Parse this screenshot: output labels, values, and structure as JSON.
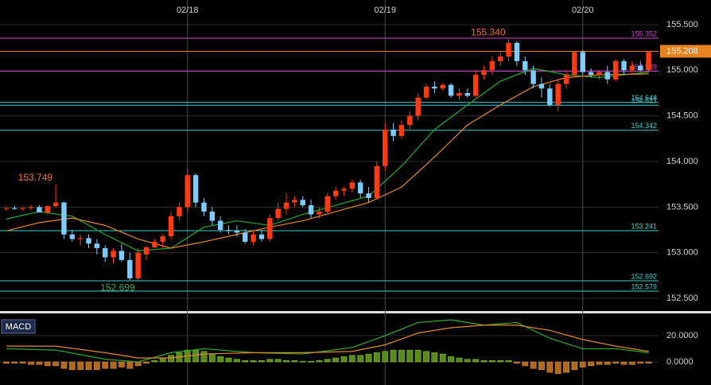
{
  "chart_data": [
    {
      "type": "candlestick",
      "categories": [
        null,
        null,
        null,
        null,
        null,
        null,
        null,
        null,
        null,
        null,
        null,
        null,
        null,
        null,
        null,
        null,
        null,
        null,
        null,
        null,
        null,
        null,
        "02/18",
        null,
        null,
        null,
        null,
        null,
        null,
        null,
        null,
        null,
        null,
        null,
        null,
        null,
        null,
        null,
        null,
        null,
        null,
        null,
        null,
        null,
        null,
        null,
        "02/19",
        null,
        null,
        null,
        null,
        null,
        null,
        null,
        null,
        null,
        null,
        null,
        null,
        null,
        null,
        null,
        null,
        null,
        null,
        null,
        null,
        null,
        null,
        null,
        "02/20",
        null,
        null,
        null,
        null,
        null,
        null,
        null,
        null
      ],
      "open": [
        153.48,
        153.49,
        153.48,
        153.49,
        153.5,
        153.44,
        153.51,
        153.55,
        153.2,
        153.15,
        153.16,
        153.1,
        153.05,
        152.95,
        153.02,
        152.92,
        152.72,
        152.98,
        153.06,
        153.12,
        153.18,
        153.4,
        153.5,
        153.85,
        153.55,
        153.45,
        153.35,
        153.25,
        153.24,
        153.22,
        153.12,
        153.2,
        153.15,
        153.38,
        153.48,
        153.55,
        153.58,
        153.52,
        153.42,
        153.45,
        153.62,
        153.68,
        153.7,
        153.77,
        153.65,
        153.6,
        153.95,
        154.35,
        154.28,
        154.4,
        154.5,
        154.7,
        154.82,
        154.8,
        154.84,
        154.72,
        154.75,
        154.72,
        154.95,
        155.0,
        155.1,
        155.15,
        155.3,
        155.1,
        155.0,
        154.85,
        154.8,
        154.62,
        154.85,
        154.95,
        155.2,
        154.98,
        154.95,
        154.98,
        154.9,
        155.1,
        155.0,
        155.05,
        155.0
      ],
      "high": [
        153.5,
        153.51,
        153.5,
        153.52,
        153.52,
        153.52,
        153.749,
        153.56,
        153.25,
        153.2,
        153.2,
        153.15,
        153.08,
        153.05,
        153.1,
        153.0,
        153.05,
        153.08,
        153.15,
        153.2,
        153.45,
        153.55,
        153.92,
        153.87,
        153.6,
        153.5,
        153.4,
        153.3,
        153.3,
        153.26,
        153.24,
        153.25,
        153.42,
        153.55,
        153.65,
        153.62,
        153.62,
        153.58,
        153.5,
        153.65,
        153.72,
        153.72,
        153.8,
        153.8,
        153.72,
        154.0,
        154.42,
        154.42,
        154.45,
        154.55,
        154.75,
        154.85,
        154.88,
        154.86,
        154.86,
        154.8,
        154.8,
        155.0,
        155.05,
        155.15,
        155.2,
        155.34,
        155.32,
        155.15,
        155.05,
        154.92,
        154.85,
        154.9,
        155.0,
        155.2,
        155.22,
        155.02,
        155.0,
        155.05,
        155.12,
        155.12,
        155.1,
        155.1,
        155.21
      ],
      "low": [
        153.46,
        153.47,
        153.46,
        153.47,
        153.45,
        153.42,
        153.5,
        153.15,
        153.12,
        153.08,
        153.05,
        152.98,
        152.9,
        152.88,
        152.9,
        152.7,
        152.699,
        152.92,
        153.05,
        153.05,
        153.15,
        153.35,
        153.45,
        153.5,
        153.4,
        153.3,
        153.22,
        153.2,
        153.18,
        153.1,
        153.08,
        153.12,
        153.12,
        153.35,
        153.42,
        153.5,
        153.5,
        153.38,
        153.38,
        153.42,
        153.58,
        153.62,
        153.66,
        153.6,
        153.55,
        153.58,
        153.9,
        154.22,
        154.25,
        154.35,
        154.45,
        154.68,
        154.75,
        154.78,
        154.7,
        154.68,
        154.7,
        154.7,
        154.9,
        154.95,
        155.05,
        155.1,
        155.05,
        154.95,
        154.8,
        154.7,
        154.6,
        154.55,
        154.8,
        154.92,
        154.95,
        154.92,
        154.9,
        154.85,
        154.88,
        154.95,
        154.95,
        154.98,
        154.98
      ],
      "close": [
        153.49,
        153.48,
        153.49,
        153.5,
        153.44,
        153.51,
        153.55,
        153.2,
        153.15,
        153.16,
        153.1,
        153.05,
        152.95,
        153.02,
        152.92,
        152.72,
        153.0,
        153.06,
        153.12,
        153.18,
        153.4,
        153.5,
        153.85,
        153.55,
        153.45,
        153.35,
        153.25,
        153.24,
        153.22,
        153.12,
        153.2,
        153.15,
        153.38,
        153.48,
        153.55,
        153.58,
        153.52,
        153.42,
        153.45,
        153.62,
        153.68,
        153.7,
        153.77,
        153.65,
        153.6,
        153.95,
        154.35,
        154.28,
        154.4,
        154.5,
        154.7,
        154.82,
        154.8,
        154.84,
        154.72,
        154.75,
        154.72,
        154.95,
        155.0,
        155.1,
        155.15,
        155.3,
        155.1,
        155.0,
        154.85,
        154.8,
        154.62,
        154.85,
        154.95,
        155.2,
        154.98,
        154.95,
        154.98,
        154.9,
        155.1,
        155.0,
        155.05,
        155.0,
        155.2
      ],
      "up_color": "#ff3a12",
      "down_color": "#7ecbff",
      "lines": [
        {
          "color": "#1fae2a",
          "x": [
            0,
            4,
            8,
            12,
            16,
            20,
            24,
            28,
            32,
            36,
            40,
            44,
            48,
            52,
            56,
            60,
            64,
            68,
            72,
            78
          ],
          "values": [
            153.37,
            153.45,
            153.4,
            153.2,
            153.02,
            153.05,
            153.28,
            153.35,
            153.3,
            153.42,
            153.52,
            153.62,
            153.95,
            154.35,
            154.62,
            154.88,
            155.02,
            154.95,
            154.92,
            154.98
          ]
        },
        {
          "color": "#e8882a",
          "x": [
            0,
            4,
            8,
            12,
            16,
            20,
            24,
            28,
            32,
            36,
            40,
            44,
            48,
            52,
            56,
            60,
            64,
            68,
            72,
            78
          ],
          "values": [
            153.24,
            153.33,
            153.38,
            153.3,
            153.15,
            153.05,
            153.12,
            153.2,
            153.28,
            153.35,
            153.45,
            153.55,
            153.72,
            154.05,
            154.4,
            154.62,
            154.82,
            154.92,
            154.95,
            154.96
          ]
        }
      ],
      "levels": [
        {
          "value": 155.352,
          "label": "155.352",
          "color": "#d040d0"
        },
        {
          "value": 155.208,
          "label": "155.208",
          "color": "#e8821e",
          "box": true
        },
        {
          "value": 154.989,
          "label": "154.989",
          "color": "#d040d0"
        },
        {
          "value": 154.648,
          "label": "154.648",
          "color": "#40d0d0"
        },
        {
          "value": 154.617,
          "label": "154.617",
          "color": "#40d0d0"
        },
        {
          "value": 154.342,
          "label": "154.342",
          "color": "#40d0d0"
        },
        {
          "value": 153.241,
          "label": "153.241",
          "color": "#40d0d0"
        },
        {
          "value": 152.692,
          "label": "152.692",
          "color": "#40d0d0"
        },
        {
          "value": 152.579,
          "label": "152.579",
          "color": "#40d0d0"
        }
      ],
      "annotations": [
        {
          "text": "155.340",
          "x": 61,
          "value": 155.34,
          "position": "above",
          "color": "#e8743a"
        },
        {
          "text": "153.749",
          "x": 6,
          "value": 153.749,
          "position": "above",
          "color": "#e8743a"
        },
        {
          "text": "152.699",
          "x": 16,
          "value": 152.699,
          "position": "below",
          "color": "#3caa3c"
        }
      ],
      "xlim": [
        -0.77,
        79.2
      ],
      "ylim": [
        152.387,
        155.77
      ],
      "yticks": [
        {
          "value": 152.5,
          "label": "152.500"
        },
        {
          "value": 153,
          "label": "153.000"
        },
        {
          "value": 153.5,
          "label": "153.500"
        },
        {
          "value": 154,
          "label": "154.000"
        },
        {
          "value": 154.5,
          "label": "154.500"
        },
        {
          "value": 155,
          "label": "155.000"
        },
        {
          "value": 155.5,
          "label": "155.500"
        }
      ],
      "grid": true
    },
    {
      "type": "macd",
      "title": "MACD",
      "histogram": [
        -1,
        -1,
        -1,
        -2,
        -2,
        -3,
        -3,
        -5,
        -6,
        -6,
        -6,
        -6,
        -5,
        -5,
        -4,
        -5,
        -3,
        -1,
        1,
        3,
        5,
        7,
        9,
        9,
        8,
        6,
        4,
        3,
        2,
        1,
        1,
        1,
        2,
        2,
        1,
        1,
        0.5,
        0.5,
        1,
        2,
        3,
        4,
        5,
        5,
        6,
        7,
        8,
        9,
        9,
        9,
        9,
        8,
        7,
        6,
        4,
        3,
        2,
        2,
        1,
        1,
        1,
        1,
        -1,
        -3,
        -5,
        -6,
        -8,
        -9,
        -8,
        -6,
        -4,
        -3,
        -2,
        -2,
        -1,
        -2,
        -2,
        -1,
        -1
      ],
      "pos_color": "#5a8a1a",
      "neg_color": "#b06a20",
      "lines": [
        {
          "color": "#2ab02a",
          "x": [
            0,
            6,
            12,
            16,
            20,
            24,
            30,
            36,
            42,
            46,
            50,
            54,
            58,
            62,
            66,
            70,
            74,
            78
          ],
          "values": [
            10,
            9,
            2,
            0,
            7,
            10,
            7,
            6,
            11,
            20,
            30,
            32,
            28,
            30,
            18,
            10,
            10,
            7
          ]
        },
        {
          "color": "#e8882a",
          "x": [
            0,
            6,
            12,
            16,
            20,
            24,
            30,
            36,
            42,
            46,
            50,
            54,
            58,
            62,
            66,
            70,
            74,
            78
          ],
          "values": [
            12,
            12,
            7,
            3,
            3,
            6,
            7,
            7,
            8,
            13,
            22,
            26,
            28,
            28,
            24,
            17,
            12,
            8
          ]
        }
      ],
      "xlim": [
        -0.77,
        79.2
      ],
      "ylim": [
        -17.6,
        34.5
      ],
      "yticks": [
        {
          "value": 0,
          "label": "0.0000"
        },
        {
          "value": 20,
          "label": "20.0000"
        }
      ],
      "grid": true
    }
  ]
}
